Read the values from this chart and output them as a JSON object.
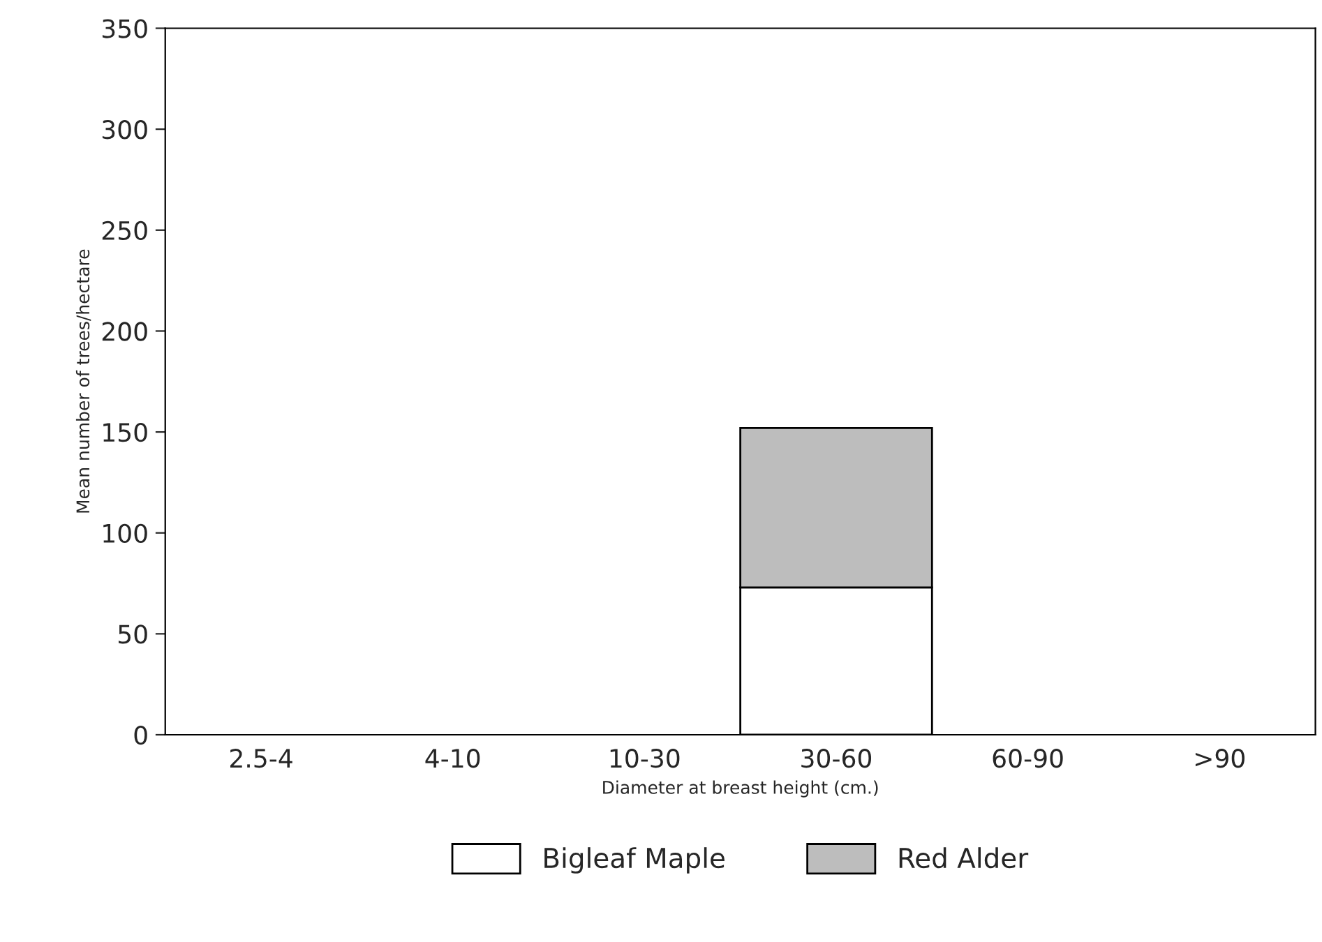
{
  "chart_data": {
    "type": "bar",
    "xlabel": "Diameter at breast height (cm.)",
    "ylabel": "Mean number of trees/hectare",
    "categories": [
      "2.5-4",
      "4-10",
      "10-30",
      "30-60",
      "60-90",
      ">90"
    ],
    "series": [
      {
        "name": "Bigleaf Maple",
        "color": "#ffffff",
        "values": [
          0,
          0,
          0,
          73,
          0,
          0
        ]
      },
      {
        "name": "Red Alder",
        "color": "#bdbdbd",
        "values": [
          0,
          0,
          0,
          79,
          0,
          0
        ]
      }
    ],
    "stacked": true,
    "ylim": [
      0,
      350
    ],
    "yticks": [
      0,
      50,
      100,
      150,
      200,
      250,
      300,
      350
    ],
    "grid": false,
    "legend": "bottom"
  }
}
